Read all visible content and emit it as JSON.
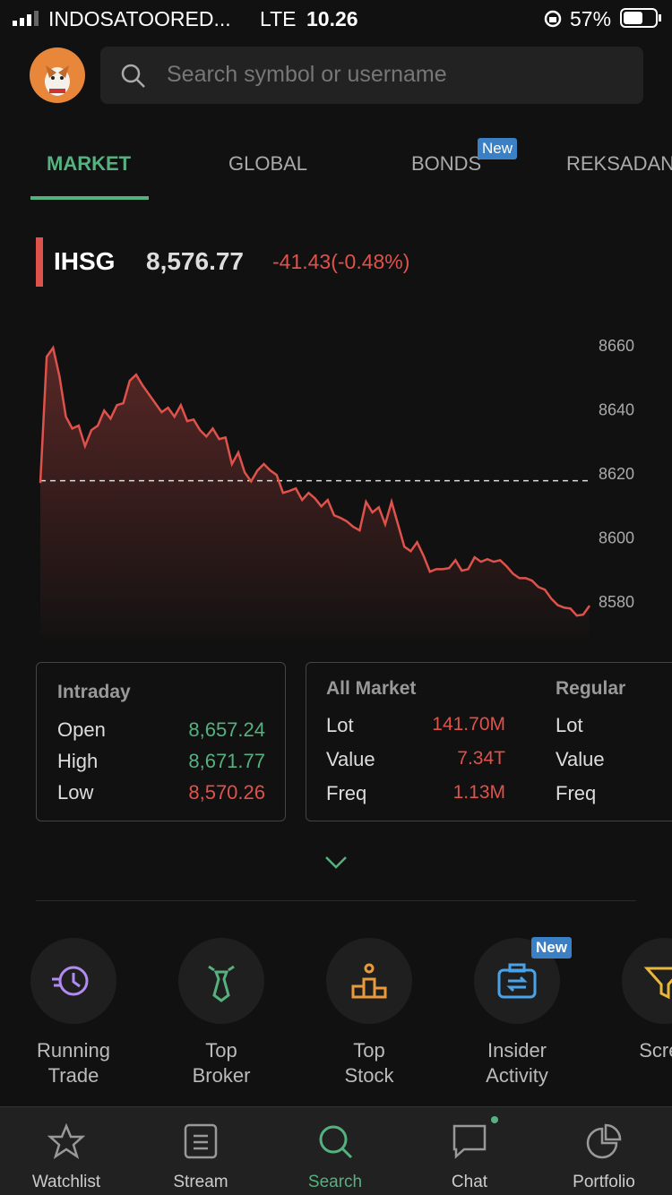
{
  "status_bar": {
    "carrier": "INDOSATOORED...",
    "network": "LTE",
    "time": "10.26",
    "battery": "57%"
  },
  "search": {
    "placeholder": "Search symbol or username"
  },
  "tabs": [
    {
      "label": "MARKET",
      "active": true
    },
    {
      "label": "GLOBAL"
    },
    {
      "label": "BONDS",
      "badge": "New"
    },
    {
      "label": "REKSADAN"
    }
  ],
  "index": {
    "name": "IHSG",
    "value": "8,576.77",
    "change": "-41.43(-0.48%)"
  },
  "chart": {
    "type": "line",
    "color": "#de524c",
    "ylim": [
      8570,
      8662
    ],
    "yticks": [
      8580,
      8600,
      8620,
      8640,
      8660
    ],
    "reference": 8618.2,
    "values": [
      8617.5,
      8656.9,
      8659.7,
      8650.8,
      8638.2,
      8634.5,
      8635.4,
      8629,
      8634,
      8635.4,
      8640.1,
      8637.6,
      8641.8,
      8642.4,
      8649.4,
      8651.3,
      8648,
      8645.2,
      8642.4,
      8639.6,
      8641,
      8638.2,
      8641.8,
      8636.8,
      8637.3,
      8634,
      8632,
      8634.5,
      8631.2,
      8631.7,
      8623.4,
      8627,
      8620.8,
      8618,
      8621.4,
      8623.4,
      8621.4,
      8620,
      8614.4,
      8615,
      8615.8,
      8612.2,
      8614.4,
      8612.7,
      8610.2,
      8612.2,
      8607.4,
      8606.6,
      8605.5,
      8603.8,
      8602.7,
      8611.6,
      8608.3,
      8609.9,
      8604.6,
      8611.6,
      8604.6,
      8597.6,
      8596.2,
      8599,
      8594.8,
      8589.8,
      8590.6,
      8590.6,
      8590.9,
      8593.4,
      8590.1,
      8590.6,
      8594.3,
      8592.9,
      8593.7,
      8592.9,
      8593.4,
      8591.5,
      8589.2,
      8587.8,
      8587.8,
      8587,
      8585,
      8584.2,
      8581.4,
      8579.4,
      8578.6,
      8578.3,
      8576.1,
      8576.4,
      8579.2
    ]
  },
  "intraday": {
    "title": "Intraday",
    "rows": [
      {
        "label": "Open",
        "value": "8,657.24",
        "color": "#55b17f"
      },
      {
        "label": "High",
        "value": "8,671.77",
        "color": "#55b17f"
      },
      {
        "label": "Low",
        "value": "8,570.26",
        "color": "#de524c"
      }
    ]
  },
  "all_market": {
    "title": "All Market",
    "rows": [
      {
        "label": "Lot",
        "value": "141.70M"
      },
      {
        "label": "Value",
        "value": "7.34T"
      },
      {
        "label": "Freq",
        "value": "1.13M"
      }
    ]
  },
  "regular": {
    "title": "Regular",
    "rows": [
      "Lot",
      "Value",
      "Freq"
    ]
  },
  "menu": [
    {
      "lines": [
        "Running",
        "Trade"
      ]
    },
    {
      "lines": [
        "Top",
        "Broker"
      ]
    },
    {
      "lines": [
        "Top",
        "Stock"
      ]
    },
    {
      "lines": [
        "Insider",
        "Activity"
      ],
      "badge": "New"
    },
    {
      "lines": [
        "Scree"
      ]
    }
  ],
  "nav": [
    {
      "label": "Watchlist"
    },
    {
      "label": "Stream"
    },
    {
      "label": "Search",
      "active": true
    },
    {
      "label": "Chat"
    },
    {
      "label": "Portfolio"
    }
  ]
}
